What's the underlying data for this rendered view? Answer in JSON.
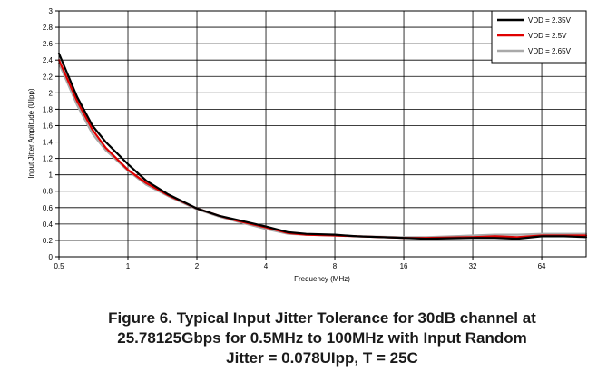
{
  "caption": {
    "line1": "Figure 6. Typical Input Jitter Tolerance for 30dB channel at",
    "line2": "25.78125Gbps for 0.5MHz to 100MHz with Input Random",
    "line3": "Jitter = 0.078UIpp, T = 25C"
  },
  "chart_data": {
    "type": "line",
    "title": "",
    "xlabel": "Frequency (MHz)",
    "ylabel": "Input Jitter Amplitude (UIpp)",
    "x_scale": "log2",
    "xlim": [
      0.5,
      100
    ],
    "ylim": [
      0,
      3
    ],
    "x_ticks": [
      0.5,
      1,
      2,
      4,
      8,
      16,
      32,
      64
    ],
    "x_tick_labels": [
      "0.5",
      "1",
      "2",
      "4",
      "8",
      "16",
      "32",
      "64"
    ],
    "y_ticks": [
      0,
      0.2,
      0.4,
      0.6,
      0.8,
      1,
      1.2,
      1.4,
      1.6,
      1.8,
      2,
      2.2,
      2.4,
      2.6,
      2.8,
      3
    ],
    "y_tick_labels": [
      "0",
      "0.2",
      "0.4",
      "0.6",
      "0.8",
      "1",
      "1.2",
      "1.4",
      "1.6",
      "1.8",
      "2",
      "2.2",
      "2.4",
      "2.6",
      "2.8",
      "3"
    ],
    "grid": true,
    "legend_position": "top-right",
    "series": [
      {
        "name": "VDD = 2.35V",
        "color": "#000000",
        "x": [
          0.5,
          0.6,
          0.7,
          0.8,
          1,
          1.2,
          1.5,
          2,
          2.5,
          3,
          4,
          5,
          6,
          8,
          10,
          16,
          20,
          32,
          40,
          50,
          64,
          80,
          100
        ],
        "y": [
          2.48,
          1.95,
          1.6,
          1.4,
          1.13,
          0.93,
          0.76,
          0.59,
          0.5,
          0.45,
          0.37,
          0.3,
          0.28,
          0.27,
          0.25,
          0.23,
          0.22,
          0.23,
          0.23,
          0.22,
          0.25,
          0.25,
          0.24
        ]
      },
      {
        "name": "VDD = 2.5V",
        "color": "#e00000",
        "x": [
          0.5,
          0.6,
          0.7,
          0.8,
          1,
          1.2,
          1.5,
          2,
          2.5,
          3,
          4,
          5,
          6,
          8,
          10,
          16,
          20,
          32,
          40,
          50,
          64,
          80,
          100
        ],
        "y": [
          2.4,
          1.9,
          1.55,
          1.33,
          1.06,
          0.9,
          0.75,
          0.59,
          0.5,
          0.44,
          0.36,
          0.29,
          0.27,
          0.26,
          0.25,
          0.23,
          0.23,
          0.24,
          0.25,
          0.24,
          0.26,
          0.26,
          0.26
        ]
      },
      {
        "name": "VDD = 2.65V",
        "color": "#a9a9a9",
        "x": [
          0.5,
          0.6,
          0.7,
          0.8,
          1,
          1.2,
          1.5,
          2,
          2.5,
          3,
          4,
          5,
          6,
          8,
          10,
          16,
          20,
          32,
          40,
          50,
          64,
          80,
          100
        ],
        "y": [
          2.36,
          1.85,
          1.5,
          1.3,
          1.05,
          0.88,
          0.74,
          0.58,
          0.49,
          0.43,
          0.34,
          0.28,
          0.27,
          0.26,
          0.25,
          0.24,
          0.24,
          0.26,
          0.27,
          0.27,
          0.28,
          0.28,
          0.28
        ]
      }
    ]
  }
}
